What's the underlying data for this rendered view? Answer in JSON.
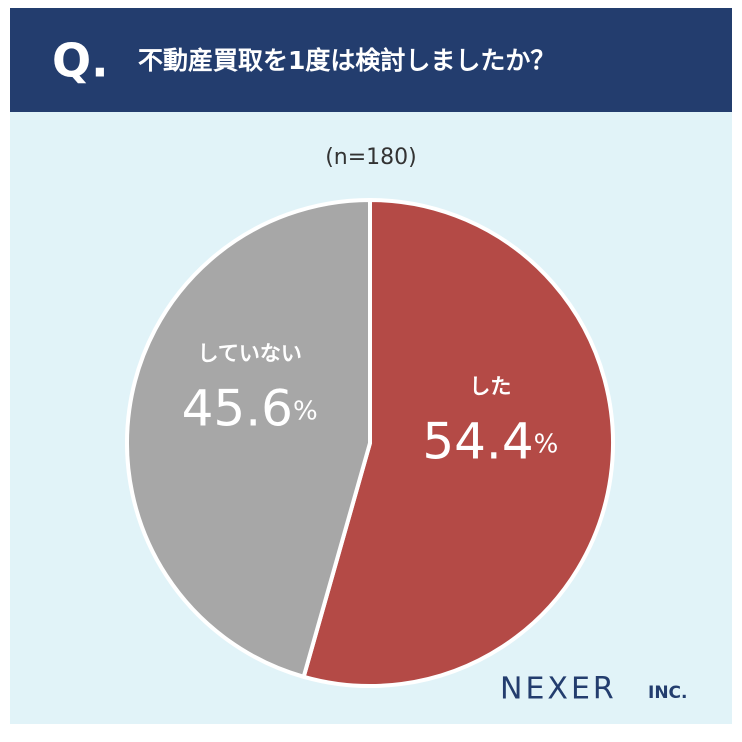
{
  "chart_data": {
    "type": "pie",
    "title_prefix": "Q.",
    "title": "不動産買取を1度は検討しましたか？",
    "subtitle": "(n=180)",
    "categories": [
      "した",
      "していない"
    ],
    "values": [
      54.4,
      45.6
    ],
    "value_labels": [
      "54.4%",
      "45.6%"
    ],
    "colors": [
      "#b44a46",
      "#a7a7a7"
    ],
    "brand": "NEXER",
    "brand_suffix": "INC."
  }
}
